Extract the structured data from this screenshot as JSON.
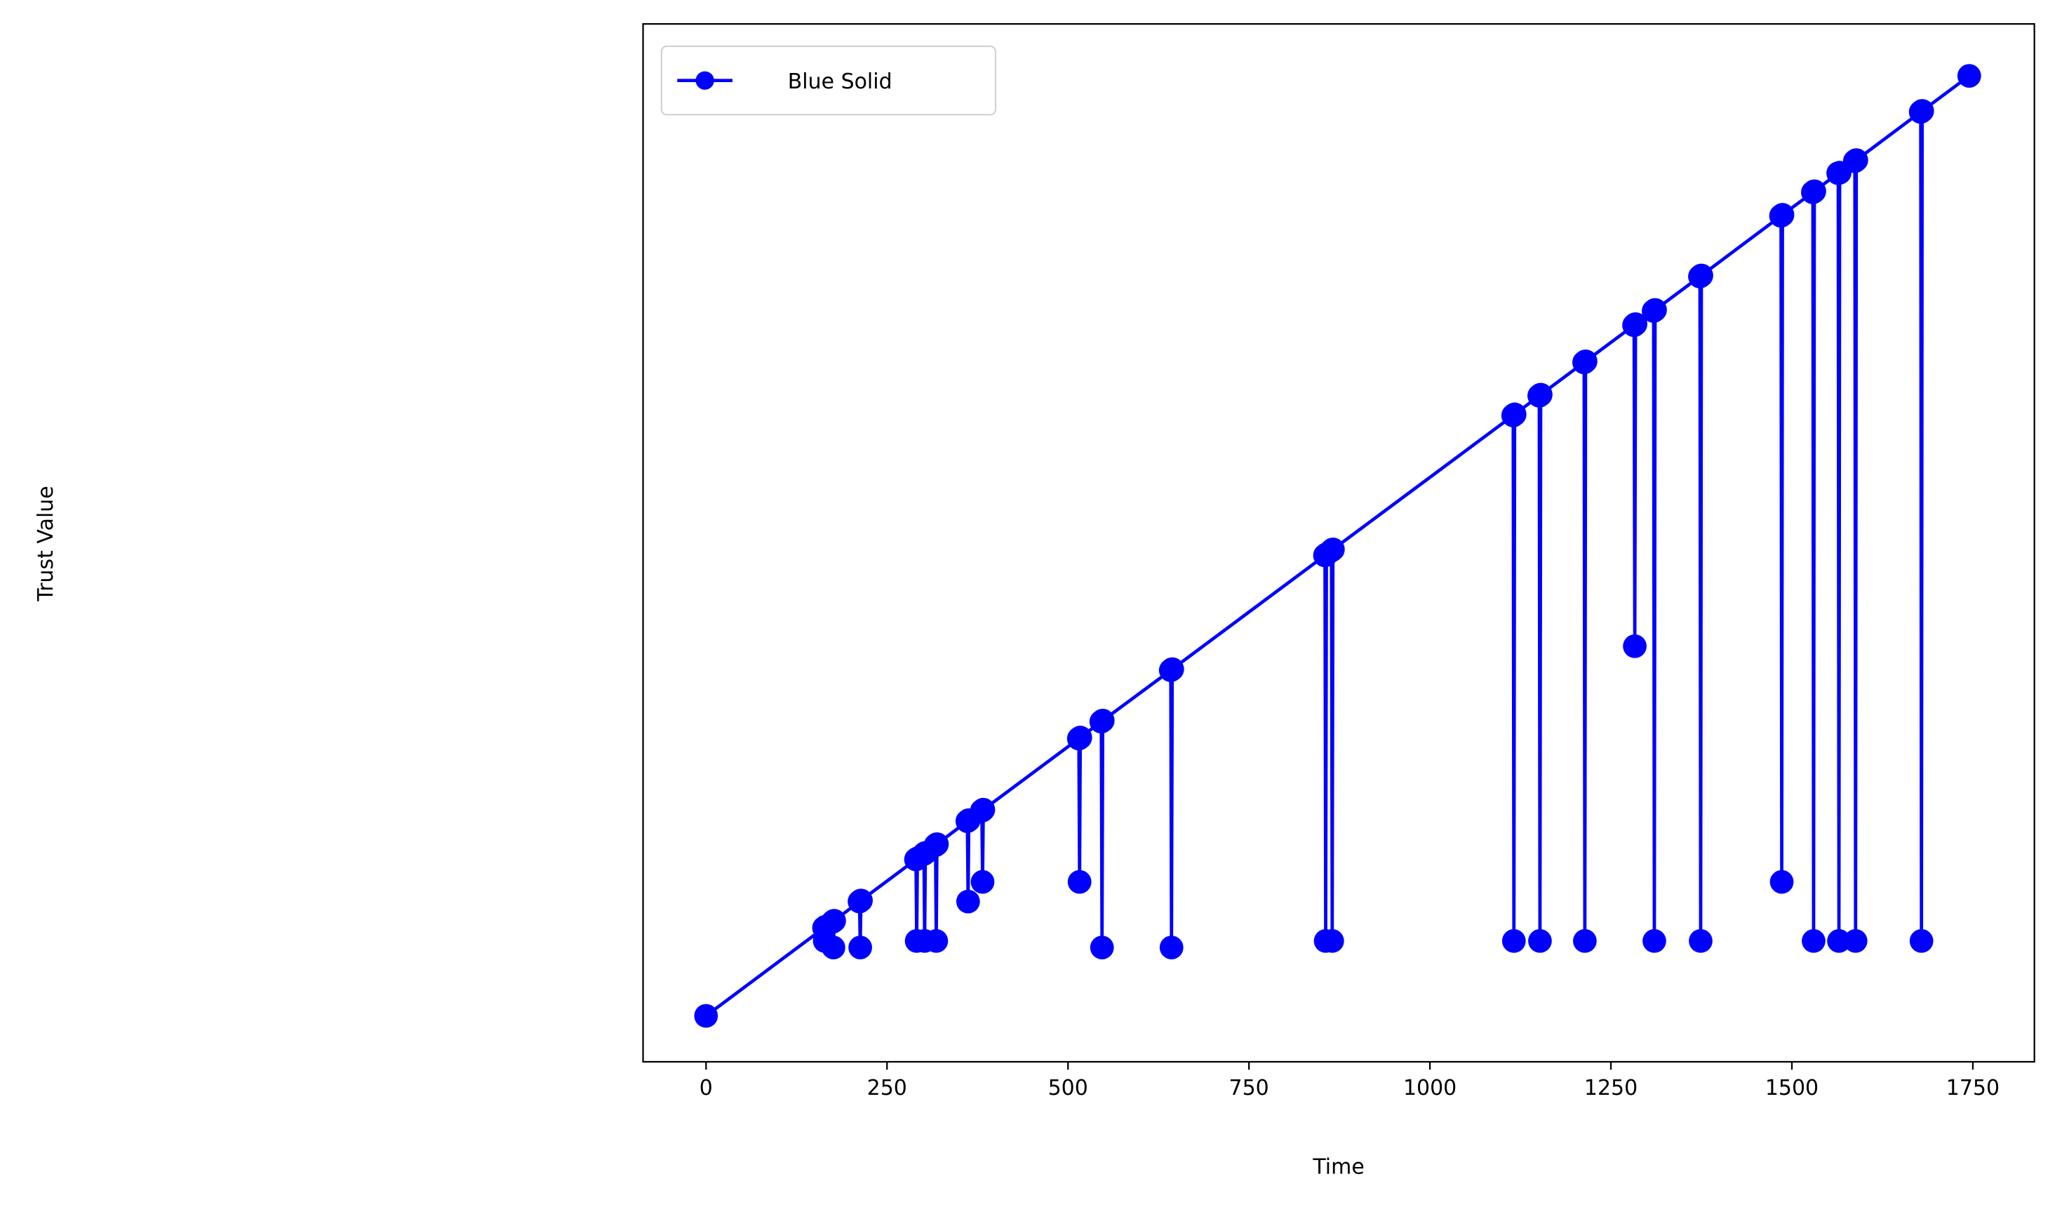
{
  "chart_data": {
    "type": "line",
    "xlabel": "Time",
    "ylabel": "Trust Value",
    "x": [
      0,
      163,
      164,
      165,
      175,
      176,
      177,
      212,
      213,
      214,
      290,
      291,
      292,
      301,
      302,
      303,
      317,
      318,
      319,
      361,
      362,
      363,
      381,
      382,
      383,
      515,
      516,
      517,
      546,
      547,
      548,
      642,
      643,
      644,
      855,
      856,
      857,
      864,
      865,
      866,
      1115,
      1116,
      1117,
      1151,
      1152,
      1153,
      1213,
      1214,
      1215,
      1282,
      1283,
      1284,
      1309,
      1310,
      1311,
      1373,
      1374,
      1375,
      1485,
      1486,
      1487,
      1529,
      1530,
      1531,
      1564,
      1565,
      1566,
      1587,
      1588,
      1589,
      1678,
      1679,
      1680,
      1745
    ],
    "series": [
      {
        "name": "Blue Solid",
        "color": "#0000ff",
        "values": [
          0,
          161,
          137,
          163,
          172,
          125,
          174,
          209,
          125,
          211,
          286,
          137,
          288,
          296,
          137,
          298,
          312,
          137,
          314,
          356,
          209,
          358,
          375,
          245,
          377,
          507,
          245,
          509,
          538,
          125,
          540,
          632,
          125,
          634,
          842,
          137,
          844,
          851,
          137,
          853,
          1098,
          137,
          1100,
          1134,
          137,
          1136,
          1195,
          137,
          1197,
          1263,
          676,
          1265,
          1289,
          137,
          1291,
          1352,
          137,
          1354,
          1463,
          245,
          1465,
          1506,
          137,
          1508,
          1541,
          137,
          1542,
          1563,
          137,
          1565,
          1653,
          137,
          1655,
          1719
        ]
      }
    ],
    "xlim": [
      -87,
      1835
    ],
    "ylim": [
      -84,
      1814
    ],
    "xticks": [
      0,
      250,
      500,
      750,
      1000,
      1250,
      1500,
      1750
    ],
    "legend": "upper left"
  }
}
